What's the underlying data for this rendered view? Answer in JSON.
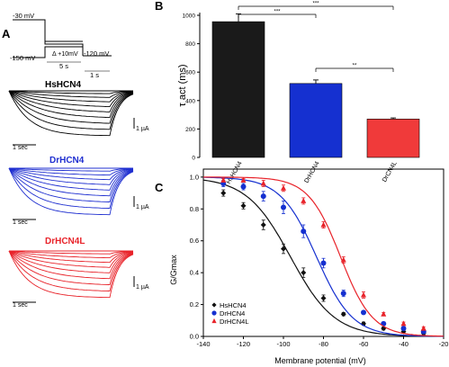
{
  "panel_labels": {
    "a": "A",
    "b": "B",
    "c": "C"
  },
  "protocol": {
    "hold_top": "-30 mV",
    "hold_bottom": "-150 mV",
    "step": "Δ +10mV",
    "tail": "-120 mV",
    "dur_step": "5 s",
    "dur_tail": "1 s"
  },
  "traces": [
    {
      "name": "HsHCN4",
      "color": "#000000",
      "scale_time": "1 sec",
      "scale_current": "1 µA"
    },
    {
      "name": "DrHCN4",
      "color": "#1f2fd0",
      "scale_time": "1 sec",
      "scale_current": "1 µA"
    },
    {
      "name": "DrHCN4L",
      "color": "#e8232a",
      "scale_time": "1 sec",
      "scale_current": "1 µA"
    }
  ],
  "chart_data": [
    {
      "type": "bar",
      "ylabel": "τ act (ms)",
      "ylim": [
        0,
        1000
      ],
      "yticks": [
        0,
        200,
        400,
        600,
        800,
        1000
      ],
      "categories": [
        "HsHCN4",
        "DrHCN4",
        "DrCN4L"
      ],
      "values": [
        955,
        520,
        270
      ],
      "errors": [
        55,
        25,
        8
      ],
      "colors": [
        "#1a1a1a",
        "#1530d0",
        "#f03a3a"
      ],
      "significance": [
        {
          "from": 0,
          "to": 1,
          "label": "***"
        },
        {
          "from": 0,
          "to": 2,
          "label": "***"
        },
        {
          "from": 1,
          "to": 2,
          "label": "**"
        }
      ]
    },
    {
      "type": "scatter",
      "xlabel": "Membrane potential (mV)",
      "ylabel": "G/Gmax",
      "xlim": [
        -140,
        -20
      ],
      "ylim": [
        0,
        1.05
      ],
      "xticks": [
        -140,
        -120,
        -100,
        -80,
        -60,
        -40,
        -20
      ],
      "yticks": [
        0.0,
        0.2,
        0.4,
        0.6,
        0.8,
        1.0
      ],
      "grid": false,
      "legend": "bottom-left",
      "series": [
        {
          "name": "HsHCN4",
          "color": "#111111",
          "marker": "diamond",
          "v_half": -96.5,
          "slope": 11,
          "x": [
            -130,
            -120,
            -110,
            -100,
            -90,
            -80,
            -70,
            -60,
            -50,
            -40,
            -30
          ],
          "y": [
            0.9,
            0.82,
            0.7,
            0.55,
            0.4,
            0.24,
            0.14,
            0.08,
            0.05,
            0.03,
            0.02
          ],
          "err": [
            0.02,
            0.02,
            0.03,
            0.03,
            0.03,
            0.02,
            0.01,
            0.01,
            0.01,
            0.01,
            0.01
          ]
        },
        {
          "name": "DrHCN4",
          "color": "#1530d0",
          "marker": "circle",
          "v_half": -83.5,
          "slope": 9,
          "x": [
            -130,
            -120,
            -110,
            -100,
            -90,
            -80,
            -70,
            -60,
            -50,
            -40,
            -30
          ],
          "y": [
            0.96,
            0.94,
            0.88,
            0.81,
            0.66,
            0.46,
            0.27,
            0.15,
            0.08,
            0.05,
            0.03
          ],
          "err": [
            0.02,
            0.02,
            0.03,
            0.04,
            0.04,
            0.03,
            0.02,
            0.01,
            0.01,
            0.01,
            0.01
          ]
        },
        {
          "name": "DrHCN4L",
          "color": "#e8232a",
          "marker": "triangle",
          "v_half": -71.5,
          "slope": 8,
          "x": [
            -130,
            -120,
            -110,
            -100,
            -90,
            -80,
            -70,
            -60,
            -50,
            -40,
            -30
          ],
          "y": [
            0.98,
            0.98,
            0.96,
            0.93,
            0.85,
            0.7,
            0.48,
            0.26,
            0.14,
            0.08,
            0.05
          ],
          "err": [
            0.01,
            0.01,
            0.02,
            0.02,
            0.02,
            0.02,
            0.02,
            0.02,
            0.01,
            0.01,
            0.01
          ]
        }
      ]
    }
  ]
}
